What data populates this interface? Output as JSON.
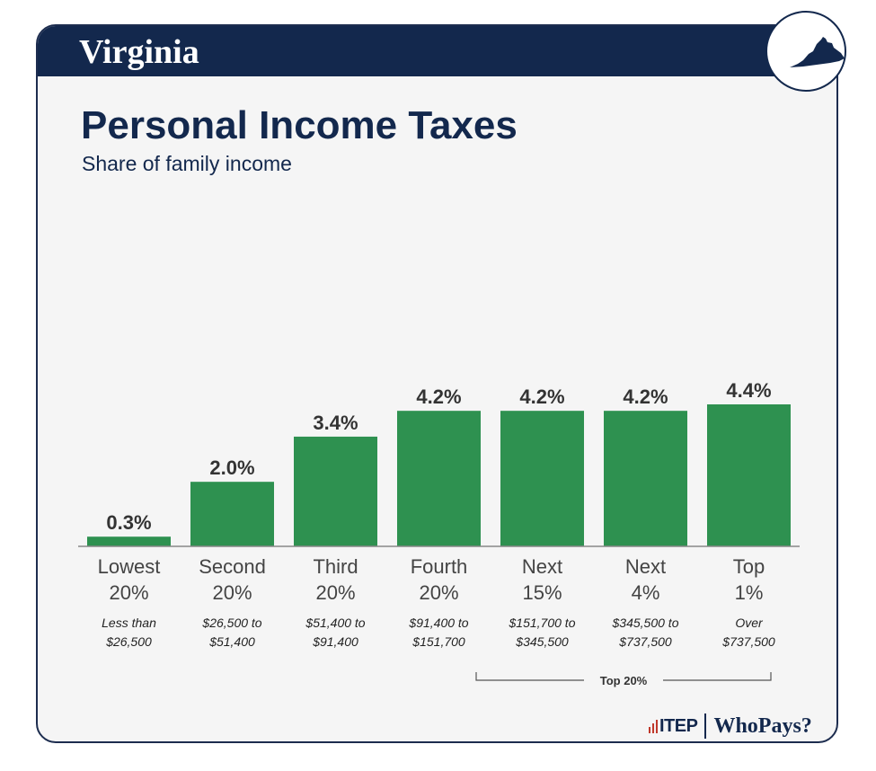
{
  "header": {
    "state_name": "Virginia",
    "title": "Personal Income Taxes",
    "subtitle": "Share of family income"
  },
  "colors": {
    "navy": "#13284d",
    "bar": "#2e9150",
    "text": "#333333"
  },
  "chart_data": {
    "type": "bar",
    "title": "Personal Income Taxes",
    "ylabel": "Share of family income",
    "xlabel": "",
    "ylim": [
      0,
      4.4
    ],
    "categories": [
      "Lowest 20%",
      "Second 20%",
      "Third 20%",
      "Fourth 20%",
      "Next 15%",
      "Next 4%",
      "Top 1%"
    ],
    "category_lines": [
      [
        "Lowest",
        "20%"
      ],
      [
        "Second",
        "20%"
      ],
      [
        "Third",
        "20%"
      ],
      [
        "Fourth",
        "20%"
      ],
      [
        "Next",
        "15%"
      ],
      [
        "Next",
        "4%"
      ],
      [
        "Top",
        "1%"
      ]
    ],
    "income_ranges": [
      [
        "Less than",
        "$26,500"
      ],
      [
        "$26,500 to",
        "$51,400"
      ],
      [
        "$51,400 to",
        "$91,400"
      ],
      [
        "$91,400 to",
        "$151,700"
      ],
      [
        "$151,700 to",
        "$345,500"
      ],
      [
        "$345,500 to",
        "$737,500"
      ],
      [
        "Over",
        "$737,500"
      ]
    ],
    "values": [
      0.3,
      2.0,
      3.4,
      4.2,
      4.2,
      4.2,
      4.4
    ],
    "value_labels": [
      "0.3%",
      "2.0%",
      "3.4%",
      "4.2%",
      "4.2%",
      "4.2%",
      "4.4%"
    ],
    "group_annotation": {
      "label": "Top 20%",
      "from_index": 4,
      "to_index": 6
    }
  },
  "footer": {
    "itep_logo": "ITEP",
    "whopays_logo": "WhoPays?"
  }
}
